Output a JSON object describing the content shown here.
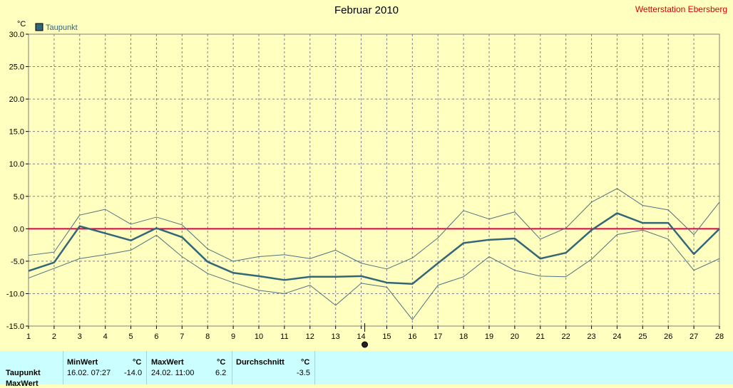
{
  "header": {
    "title": "Februar 2010",
    "station": "Wetterstation Ebersberg",
    "unit": "°C"
  },
  "legend": {
    "label": "Taupunkt"
  },
  "colors": {
    "background": "#ffffc0",
    "main_line": "#336677",
    "band_line": "#4d7280",
    "zero_line": "#e00050",
    "grid": "#808080",
    "table_bg": "#cbffff"
  },
  "chart_data": {
    "type": "line",
    "title": "Februar 2010",
    "ylabel": "°C",
    "ylim": [
      -15,
      30
    ],
    "yticks": [
      "30.0",
      "25.0",
      "20.0",
      "15.0",
      "10.0",
      "5.0",
      "0.0",
      "-5.0",
      "-10.0",
      "-15.0"
    ],
    "ytick_values": [
      30,
      25,
      20,
      15,
      10,
      5,
      0,
      -5,
      -10,
      -15
    ],
    "x": [
      1,
      2,
      3,
      4,
      5,
      6,
      7,
      8,
      9,
      10,
      11,
      12,
      13,
      14,
      15,
      16,
      17,
      18,
      19,
      20,
      21,
      22,
      23,
      24,
      25,
      26,
      27,
      28
    ],
    "xticks": [
      "1",
      "2",
      "3",
      "4",
      "5",
      "6",
      "7",
      "8",
      "9",
      "10",
      "11",
      "12",
      "13",
      "14",
      "15",
      "16",
      "17",
      "18",
      "19",
      "20",
      "21",
      "22",
      "23",
      "24",
      "25",
      "26",
      "27",
      "28"
    ],
    "grid": true,
    "legend_position": "top-left",
    "reference_line": 0,
    "series": [
      {
        "name": "Taupunkt",
        "values": [
          -6.5,
          -5.2,
          0.4,
          -0.7,
          -1.8,
          0.1,
          -1.3,
          -5.1,
          -6.8,
          -7.3,
          -7.9,
          -7.4,
          -7.4,
          -7.3,
          -8.3,
          -8.5,
          -5.3,
          -2.2,
          -1.7,
          -1.5,
          -4.6,
          -3.7,
          -0.2,
          2.4,
          0.9,
          0.9,
          -3.9,
          0.0
        ]
      },
      {
        "values": [
          -4.1,
          -3.6,
          2.1,
          3.0,
          0.7,
          1.8,
          0.6,
          -3.1,
          -5.0,
          -4.3,
          -4.0,
          -4.6,
          -3.3,
          -5.3,
          -6.2,
          -4.5,
          -1.4,
          2.8,
          1.5,
          2.6,
          -1.6,
          0.1,
          4.1,
          6.2,
          3.6,
          2.9,
          -0.9,
          4.1
        ]
      },
      {
        "values": [
          -7.6,
          -6.1,
          -4.6,
          -4.0,
          -3.3,
          -1.0,
          -4.3,
          -6.9,
          -8.3,
          -9.5,
          -10.0,
          -8.7,
          -11.8,
          -8.4,
          -9.0,
          -14.0,
          -8.7,
          -7.4,
          -4.3,
          -6.4,
          -7.3,
          -7.4,
          -4.7,
          -0.9,
          -0.2,
          -1.6,
          -6.4,
          -4.6
        ]
      }
    ]
  },
  "stats": {
    "row_label": "Taupunkt",
    "row2_label": "MaxWert",
    "min": {
      "header": "MinWert",
      "unit": "°C",
      "date": "16.02.  07:27",
      "value": "-14.0"
    },
    "max": {
      "header": "MaxWert",
      "unit": "°C",
      "date": "24.02.  11:00",
      "value": "6.2"
    },
    "avg": {
      "header": "Durchschnitt",
      "unit": "°C",
      "value": "-3.5"
    }
  }
}
